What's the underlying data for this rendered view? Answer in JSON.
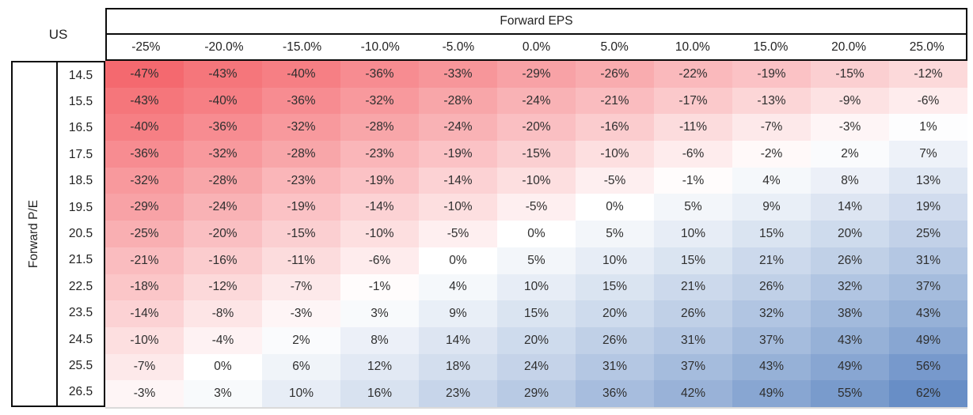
{
  "table": {
    "corner_label": "US"
  },
  "chart_data": {
    "type": "heatmap",
    "title": "US",
    "x_title": "Forward EPS",
    "y_title": "Forward P/E",
    "x_labels": [
      "-25%",
      "-20.0%",
      "-15.0%",
      "-10.0%",
      "-5.0%",
      "0.0%",
      "5.0%",
      "10.0%",
      "15.0%",
      "20.0%",
      "25.0%"
    ],
    "y_labels": [
      "14.5",
      "15.5",
      "16.5",
      "17.5",
      "18.5",
      "19.5",
      "20.5",
      "21.5",
      "22.5",
      "23.5",
      "24.5",
      "25.5",
      "26.5"
    ],
    "values": [
      [
        -47,
        -43,
        -40,
        -36,
        -33,
        -29,
        -26,
        -22,
        -19,
        -15,
        -12
      ],
      [
        -43,
        -40,
        -36,
        -32,
        -28,
        -24,
        -21,
        -17,
        -13,
        -9,
        -6
      ],
      [
        -40,
        -36,
        -32,
        -28,
        -24,
        -20,
        -16,
        -11,
        -7,
        -3,
        1
      ],
      [
        -36,
        -32,
        -28,
        -23,
        -19,
        -15,
        -10,
        -6,
        -2,
        2,
        7
      ],
      [
        -32,
        -28,
        -23,
        -19,
        -14,
        -10,
        -5,
        -1,
        4,
        8,
        13
      ],
      [
        -29,
        -24,
        -19,
        -14,
        -10,
        -5,
        0,
        5,
        9,
        14,
        19
      ],
      [
        -25,
        -20,
        -15,
        -10,
        -5,
        0,
        5,
        10,
        15,
        20,
        25
      ],
      [
        -21,
        -16,
        -11,
        -6,
        0,
        5,
        10,
        15,
        21,
        26,
        31
      ],
      [
        -18,
        -12,
        -7,
        -1,
        4,
        10,
        15,
        21,
        26,
        32,
        37
      ],
      [
        -14,
        -8,
        -3,
        3,
        9,
        15,
        20,
        26,
        32,
        38,
        43
      ],
      [
        -10,
        -4,
        2,
        8,
        14,
        20,
        26,
        31,
        37,
        43,
        49
      ],
      [
        -7,
        0,
        6,
        12,
        18,
        24,
        31,
        37,
        43,
        49,
        56
      ],
      [
        -3,
        3,
        10,
        16,
        23,
        29,
        36,
        42,
        49,
        55,
        62
      ]
    ],
    "value_suffix": "%",
    "color_scale": {
      "negative_color": "#F4696F",
      "midpoint_color": "#FFFFFF",
      "positive_color": "#688EC6",
      "min": -47,
      "max": 62
    },
    "layout": {
      "grid": false,
      "legend": false
    }
  }
}
